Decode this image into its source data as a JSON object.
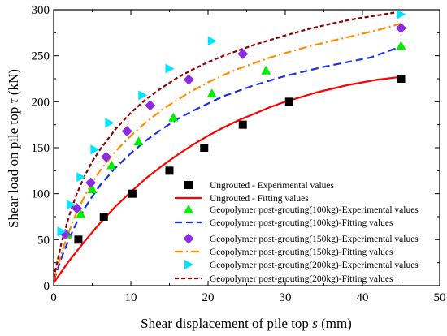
{
  "chart_data": {
    "type": "scatter",
    "xlabel": "Shear displacement of pile top s (mm)",
    "ylabel": "Shear load on pile top τ (kN)",
    "xlabel_parts": {
      "text": "Shear displacement of pile top ",
      "var": "s",
      "unit": " (mm)"
    },
    "ylabel_parts": {
      "text": "Shear load on pile top ",
      "var": "τ",
      "unit": " (kN)"
    },
    "xlim": [
      0,
      50
    ],
    "ylim": [
      0,
      300
    ],
    "xticks": [
      0,
      10,
      20,
      30,
      40,
      50
    ],
    "yticks": [
      0,
      50,
      100,
      150,
      200,
      250,
      300
    ],
    "legend_position": "bottom-right",
    "grid": false,
    "series": [
      {
        "name": "Ungrouted - Experimental values",
        "kind": "scatter",
        "marker": "square",
        "color": "#000000",
        "x": [
          3.2,
          6.5,
          10.2,
          15.0,
          19.5,
          24.5,
          30.5,
          45.0
        ],
        "y": [
          50,
          75,
          100,
          125,
          150,
          175,
          200,
          225
        ]
      },
      {
        "name": "Ungrouted - Fitting values",
        "kind": "line",
        "dash": "solid",
        "color": "#ff0000",
        "x": [
          0,
          2,
          4,
          6,
          8,
          10,
          12,
          14,
          16,
          18,
          20,
          22,
          24,
          26,
          28,
          30,
          32,
          34,
          36,
          38,
          40,
          42,
          45
        ],
        "y": [
          3,
          27,
          48,
          68,
          86,
          102,
          117,
          130,
          142,
          153,
          163,
          172,
          180,
          187,
          194,
          200,
          205,
          210,
          214,
          218,
          221,
          224,
          227
        ]
      },
      {
        "name": "Geopolymer post-grouting(100kg)-Experimental values",
        "kind": "scatter",
        "marker": "triangle",
        "color": "#00ee00",
        "x": [
          1.8,
          3.5,
          5.0,
          7.5,
          11.0,
          15.5,
          20.5,
          27.5,
          45.0
        ],
        "y": [
          56,
          78,
          105,
          131,
          157,
          183,
          209,
          234,
          261
        ]
      },
      {
        "name": "Geopolymer post-grouting(100kg)-Fitting values",
        "kind": "line",
        "dash": "dashed",
        "color": "#1c30e6",
        "x": [
          0,
          1,
          2,
          3,
          4,
          5,
          6,
          8,
          10,
          12,
          14,
          16,
          18,
          20,
          22,
          24,
          26,
          28,
          30,
          32,
          35,
          38,
          41,
          45
        ],
        "y": [
          5,
          30,
          51,
          69,
          84,
          97,
          109,
          128,
          144,
          158,
          170,
          181,
          190,
          198,
          206,
          212,
          218,
          223,
          228,
          232,
          238,
          243,
          248,
          260
        ]
      },
      {
        "name": "Geopolymer post-grouting(150kg)-Experimental values",
        "kind": "scatter",
        "marker": "diamond",
        "color": "#8b2be2",
        "x": [
          1.5,
          3.0,
          4.8,
          6.8,
          9.5,
          12.5,
          17.5,
          24.5,
          45.0
        ],
        "y": [
          56,
          84,
          112,
          140,
          168,
          196,
          224,
          252,
          280
        ]
      },
      {
        "name": "Geopolymer post-grouting(150kg)-Fitting values",
        "kind": "line",
        "dash": "dashdot",
        "color": "#ff8c00",
        "x": [
          0,
          1,
          2,
          3,
          4,
          5,
          6,
          8,
          10,
          12,
          14,
          16,
          18,
          20,
          22,
          24,
          26,
          28,
          30,
          33,
          36,
          39,
          42,
          45
        ],
        "y": [
          6,
          35,
          59,
          80,
          97,
          112,
          125,
          146,
          163,
          178,
          191,
          202,
          212,
          221,
          229,
          236,
          242,
          248,
          253,
          260,
          266,
          272,
          278,
          285
        ]
      },
      {
        "name": "Geopolymer post-grouting(200kg)-Experimental values",
        "kind": "scatter",
        "marker": "triangle-right",
        "color": "#00e5ff",
        "x": [
          1.0,
          2.2,
          3.5,
          5.3,
          7.2,
          11.5,
          15.0,
          20.5,
          45.0
        ],
        "y": [
          59,
          88,
          118,
          148,
          177,
          207,
          236,
          266,
          295
        ]
      },
      {
        "name": "Geopolymer post-grouting(200kg)-Fitting values",
        "kind": "line",
        "dash": "shortdash",
        "color": "#8b0000",
        "x": [
          0,
          1,
          2,
          3,
          4,
          5,
          6,
          8,
          10,
          12,
          14,
          16,
          18,
          20,
          22,
          24,
          26,
          28,
          30,
          33,
          36,
          39,
          42,
          45
        ],
        "y": [
          8,
          46,
          76,
          100,
          119,
          135,
          148,
          170,
          188,
          203,
          215,
          226,
          235,
          243,
          250,
          256,
          262,
          267,
          272,
          279,
          285,
          290,
          294,
          298
        ]
      }
    ]
  }
}
